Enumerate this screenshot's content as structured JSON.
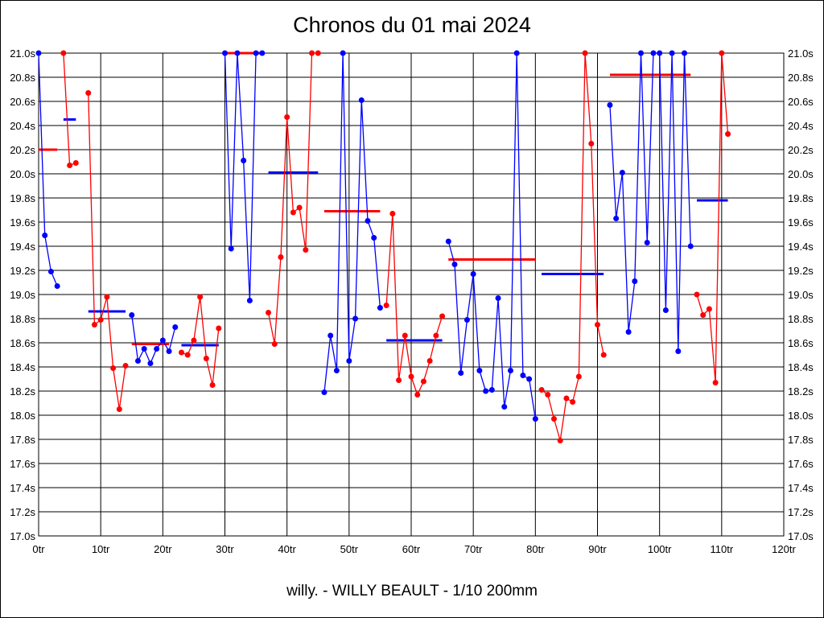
{
  "chart_data": {
    "type": "line",
    "title": "Chronos du 01 mai 2024",
    "subtitle": "willy. - WILLY BEAULT - 1/10 200mm",
    "xlabel": "",
    "ylabel": "",
    "xlim": [
      0,
      120
    ],
    "ylim": [
      17.0,
      21.0
    ],
    "x_ticks": [
      "0tr",
      "10tr",
      "20tr",
      "30tr",
      "40tr",
      "50tr",
      "60tr",
      "70tr",
      "80tr",
      "90tr",
      "100tr",
      "110tr",
      "120tr"
    ],
    "x_tick_values": [
      0,
      10,
      20,
      30,
      40,
      50,
      60,
      70,
      80,
      90,
      100,
      110,
      120
    ],
    "y_ticks": [
      "17.0s",
      "17.2s",
      "17.4s",
      "17.6s",
      "17.8s",
      "18.0s",
      "18.2s",
      "18.4s",
      "18.6s",
      "18.8s",
      "19.0s",
      "19.2s",
      "19.4s",
      "19.6s",
      "19.8s",
      "20.0s",
      "20.2s",
      "20.4s",
      "20.6s",
      "20.8s",
      "21.0s"
    ],
    "y_tick_values": [
      17.0,
      17.2,
      17.4,
      17.6,
      17.8,
      18.0,
      18.2,
      18.4,
      18.6,
      18.8,
      19.0,
      19.2,
      19.4,
      19.6,
      19.8,
      20.0,
      20.2,
      20.4,
      20.6,
      20.8,
      21.0
    ],
    "grid": true,
    "colors": {
      "blue": "#0000ff",
      "red": "#ff0000"
    },
    "series": [
      {
        "name": "stint-1",
        "color": "blue",
        "x": [
          0,
          1,
          2,
          3
        ],
        "y": [
          21.0,
          19.49,
          19.19,
          19.07
        ]
      },
      {
        "name": "stint-2",
        "color": "red",
        "x": [
          4,
          5,
          6
        ],
        "y": [
          21.0,
          20.07,
          20.09
        ]
      },
      {
        "name": "stint-3",
        "color": "red",
        "x": [
          8,
          9,
          10,
          11,
          12,
          13,
          14
        ],
        "y": [
          20.67,
          18.75,
          18.79,
          18.98,
          18.39,
          18.05,
          18.41
        ]
      },
      {
        "name": "stint-4",
        "color": "blue",
        "x": [
          15,
          16,
          17,
          18,
          19,
          20,
          21,
          22
        ],
        "y": [
          18.83,
          18.45,
          18.55,
          18.43,
          18.55,
          18.62,
          18.53,
          18.73
        ]
      },
      {
        "name": "stint-5",
        "color": "red",
        "x": [
          23,
          24,
          25,
          26,
          27,
          28,
          29
        ],
        "y": [
          18.52,
          18.5,
          18.62,
          18.98,
          18.47,
          18.25,
          18.72
        ]
      },
      {
        "name": "stint-6",
        "color": "blue",
        "x": [
          30,
          31,
          32,
          33,
          34,
          35,
          36
        ],
        "y": [
          21.0,
          19.38,
          21.0,
          20.11,
          18.95,
          21.0,
          21.0
        ]
      },
      {
        "name": "stint-7",
        "color": "red",
        "x": [
          37,
          38,
          39,
          40,
          41,
          42,
          43,
          44,
          45
        ],
        "y": [
          18.85,
          18.59,
          19.31,
          20.47,
          19.68,
          19.72,
          19.37,
          21.0,
          21.0
        ]
      },
      {
        "name": "stint-8",
        "color": "blue",
        "x": [
          46,
          47,
          48,
          49,
          50,
          51,
          52,
          53,
          54,
          55
        ],
        "y": [
          18.19,
          18.66,
          18.37,
          21.0,
          18.45,
          18.8,
          20.61,
          19.61,
          19.47,
          18.89
        ]
      },
      {
        "name": "stint-9",
        "color": "red",
        "x": [
          56,
          57,
          58,
          59,
          60,
          61,
          62,
          63,
          64,
          65
        ],
        "y": [
          18.91,
          19.67,
          18.29,
          18.66,
          18.32,
          18.17,
          18.28,
          18.45,
          18.66,
          18.82
        ]
      },
      {
        "name": "stint-10",
        "color": "blue",
        "x": [
          66,
          67,
          68,
          69,
          70,
          71,
          72,
          73,
          74,
          75,
          76,
          77,
          78,
          79,
          80
        ],
        "y": [
          19.44,
          19.25,
          18.35,
          18.79,
          19.17,
          18.37,
          18.2,
          18.21,
          18.97,
          18.07,
          18.37,
          21.0,
          18.33,
          18.3,
          17.97
        ]
      },
      {
        "name": "stint-11",
        "color": "red",
        "x": [
          81,
          82,
          83,
          84,
          85,
          86,
          87,
          88,
          89,
          90,
          91
        ],
        "y": [
          18.21,
          18.17,
          17.97,
          17.79,
          18.14,
          18.11,
          18.32,
          21.0,
          20.25,
          18.75,
          18.5
        ]
      },
      {
        "name": "stint-12",
        "color": "blue",
        "x": [
          92,
          93,
          94,
          95,
          96,
          97,
          98,
          99,
          100,
          101,
          102,
          103,
          104,
          105
        ],
        "y": [
          20.57,
          19.63,
          20.01,
          18.69,
          19.11,
          21.0,
          19.43,
          21.0,
          21.0,
          18.87,
          21.0,
          18.53,
          21.0,
          19.4
        ]
      },
      {
        "name": "stint-13",
        "color": "red",
        "x": [
          106,
          107,
          108,
          109,
          110,
          111
        ],
        "y": [
          19.0,
          18.83,
          18.88,
          18.27,
          21.0,
          20.33
        ]
      }
    ],
    "averages": [
      {
        "color": "red",
        "from": 0,
        "to": 3,
        "value": 20.2
      },
      {
        "color": "blue",
        "from": 4,
        "to": 6,
        "value": 20.45
      },
      {
        "color": "blue",
        "from": 8,
        "to": 14,
        "value": 18.86
      },
      {
        "color": "red",
        "from": 15,
        "to": 21,
        "value": 18.59
      },
      {
        "color": "blue",
        "from": 23,
        "to": 29,
        "value": 18.58
      },
      {
        "color": "red",
        "from": 30,
        "to": 36,
        "value": 21.0
      },
      {
        "color": "blue",
        "from": 37,
        "to": 45,
        "value": 20.01
      },
      {
        "color": "red",
        "from": 46,
        "to": 55,
        "value": 19.69
      },
      {
        "color": "blue",
        "from": 56,
        "to": 65,
        "value": 18.62
      },
      {
        "color": "red",
        "from": 66,
        "to": 80,
        "value": 19.29
      },
      {
        "color": "blue",
        "from": 81,
        "to": 91,
        "value": 19.17
      },
      {
        "color": "red",
        "from": 92,
        "to": 105,
        "value": 20.82
      },
      {
        "color": "blue",
        "from": 106,
        "to": 111,
        "value": 19.78
      }
    ]
  }
}
